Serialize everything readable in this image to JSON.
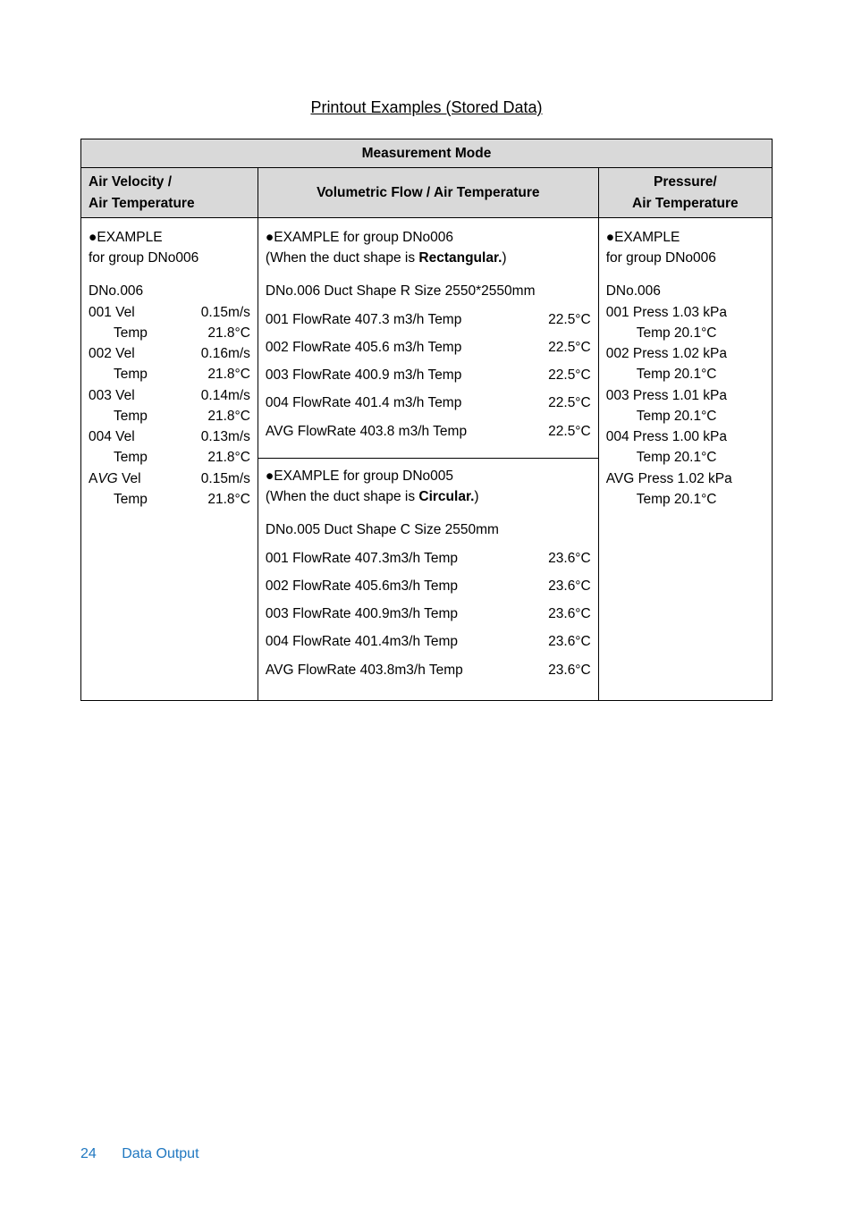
{
  "title": "Printout Examples (Stored Data)",
  "table": {
    "header_merged": "Measurement Mode",
    "headers": {
      "col1_line1": "Air Velocity /",
      "col1_line2": "Air Temperature",
      "col2": "Volumetric Flow / Air Temperature",
      "col3_line1": "Pressure/",
      "col3_line2": "Air Temperature"
    },
    "col1": {
      "ex_label": "●EXAMPLE",
      "ex_group": "for group DNo006",
      "dno": "DNo.006",
      "rows": [
        {
          "a": "001 Vel",
          "b": "0.15m/s",
          "indent": 1
        },
        {
          "a": "Temp",
          "b": "21.8°C",
          "indent": 2
        },
        {
          "a": "002 Vel",
          "b": "0.16m/s",
          "indent": 1
        },
        {
          "a": "Temp",
          "b": "21.8°C",
          "indent": 2
        },
        {
          "a": "003 Vel",
          "b": "0.14m/s",
          "indent": 1
        },
        {
          "a": "Temp",
          "b": "21.8°C",
          "indent": 2
        },
        {
          "a": "004 Vel",
          "b": "0.13m/s",
          "indent": 1
        },
        {
          "a": "Temp",
          "b": "21.8°C",
          "indent": 2
        },
        {
          "a_pre": "A",
          "a_it": "VG",
          "a_post": " Vel",
          "b": "0.15m/s",
          "indent": 1
        },
        {
          "a": "Temp",
          "b": "21.8°C",
          "indent": 2
        }
      ]
    },
    "col2a": {
      "ex_label": "●EXAMPLE for group DNo006",
      "ex_note_pre": "(When the duct shape is ",
      "ex_note_bold": "Rectangular.",
      "ex_note_post": ")",
      "dshape": "DNo.006 Duct Shape R Size 2550*2550mm",
      "rows": [
        {
          "a": "001 FlowRate 407.3 m3/h Temp",
          "b": "22.5°C"
        },
        {
          "a": "002 FlowRate 405.6 m3/h Temp",
          "b": "22.5°C"
        },
        {
          "a": "003 FlowRate 400.9 m3/h Temp",
          "b": "22.5°C"
        },
        {
          "a": "004 FlowRate 401.4 m3/h Temp",
          "b": "22.5°C"
        },
        {
          "a": "AVG FlowRate 403.8 m3/h Temp",
          "b": "22.5°C"
        }
      ]
    },
    "col2b": {
      "ex_label": "●EXAMPLE for group DNo005",
      "ex_note_pre": "(When the duct shape is ",
      "ex_note_bold": "Circular.",
      "ex_note_post": ")",
      "dshape": "DNo.005 Duct Shape C Size 2550mm",
      "rows": [
        {
          "a": "001 FlowRate 407.3m3/h Temp",
          "b": "23.6°C"
        },
        {
          "a": "002 FlowRate 405.6m3/h Temp",
          "b": "23.6°C"
        },
        {
          "a": "003 FlowRate 400.9m3/h Temp",
          "b": "23.6°C"
        },
        {
          "a": "004 FlowRate 401.4m3/h Temp",
          "b": "23.6°C"
        },
        {
          "a": "AVG FlowRate 403.8m3/h Temp",
          "b": "23.6°C"
        }
      ]
    },
    "col3": {
      "ex_label": "●EXAMPLE",
      "ex_group": "for group DNo006",
      "dno": "DNo.006",
      "rows": [
        {
          "a": "001 Press 1.03 kPa"
        },
        {
          "a": "Temp  20.1°C",
          "indent": 2
        },
        {
          "a": "002 Press 1.02 kPa"
        },
        {
          "a": "Temp  20.1°C",
          "indent": 2
        },
        {
          "a": "003 Press 1.01 kPa"
        },
        {
          "a": "Temp  20.1°C",
          "indent": 2
        },
        {
          "a": "004 Press 1.00 kPa"
        },
        {
          "a": "Temp  20.1°C",
          "indent": 2
        },
        {
          "a": "AVG Press 1.02 kPa"
        },
        {
          "a": "Temp  20.1°C",
          "indent": 2
        }
      ]
    }
  },
  "footer": {
    "page": "24",
    "section": "Data Output"
  },
  "colors": {
    "blue": "#1f77c0"
  }
}
